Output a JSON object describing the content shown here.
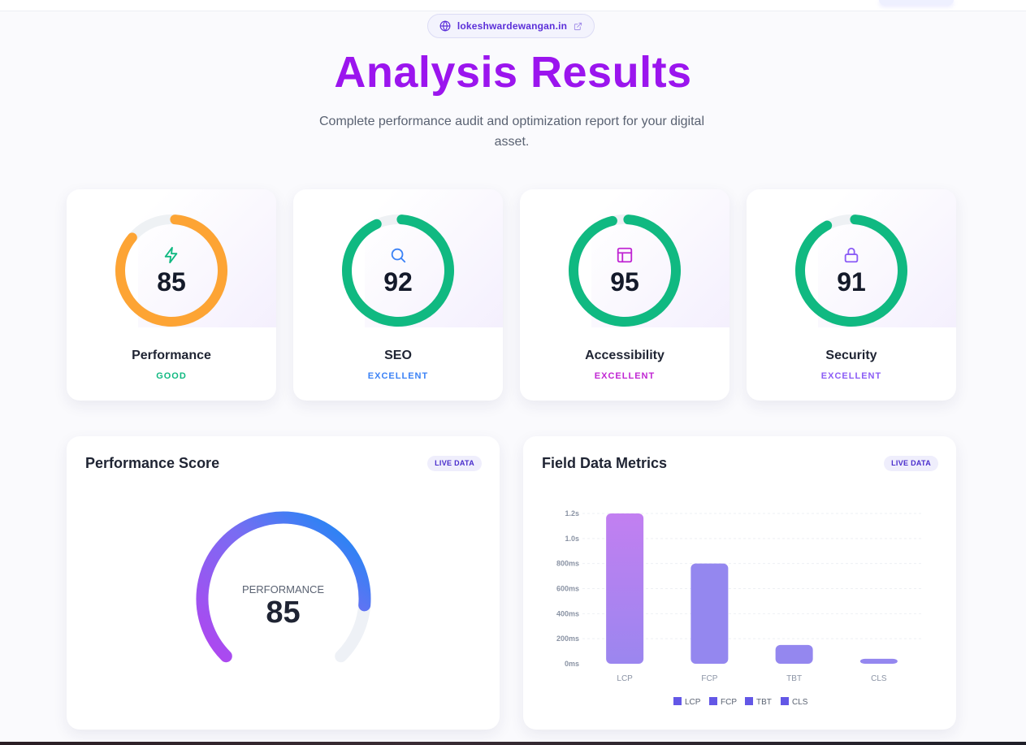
{
  "url": "lokeshwardewangan.in",
  "page_title": "Analysis Results",
  "subtitle": "Complete performance audit and optimization report for your digital asset.",
  "score_cards": [
    {
      "label": "Performance",
      "score": "85",
      "status": "GOOD",
      "icon": "bolt-icon",
      "ring_color": "#fda434",
      "status_color": "#10b981",
      "icon_color": "#10b981",
      "fraction": 0.85
    },
    {
      "label": "SEO",
      "score": "92",
      "status": "EXCELLENT",
      "icon": "search-icon",
      "ring_color": "#10b981",
      "status_color": "#3b82f6",
      "icon_color": "#3b82f6",
      "fraction": 0.92
    },
    {
      "label": "Accessibility",
      "score": "95",
      "status": "EXCELLENT",
      "icon": "layout-icon",
      "ring_color": "#10b981",
      "status_color": "#c026d3",
      "icon_color": "#c026d3",
      "fraction": 0.95
    },
    {
      "label": "Security",
      "score": "91",
      "status": "EXCELLENT",
      "icon": "lock-icon",
      "ring_color": "#10b981",
      "status_color": "#8b5cf6",
      "icon_color": "#8b5cf6",
      "fraction": 0.91
    }
  ],
  "performance_panel": {
    "title": "Performance Score",
    "badge": "LIVE DATA",
    "gauge_label": "PERFORMANCE",
    "gauge_value": "85",
    "fraction": 0.85
  },
  "field_panel": {
    "title": "Field Data Metrics",
    "badge": "LIVE DATA"
  },
  "chart_data": {
    "type": "bar",
    "categories": [
      "LCP",
      "FCP",
      "TBT",
      "CLS"
    ],
    "values": [
      1200,
      800,
      150,
      40
    ],
    "y_unit": "ms",
    "ylim": [
      0,
      1200
    ],
    "y_ticks": [
      {
        "value": 0,
        "label": "0ms"
      },
      {
        "value": 200,
        "label": "200ms"
      },
      {
        "value": 400,
        "label": "400ms"
      },
      {
        "value": 600,
        "label": "600ms"
      },
      {
        "value": 800,
        "label": "800ms"
      },
      {
        "value": 1000,
        "label": "1.0s"
      },
      {
        "value": 1200,
        "label": "1.2s"
      }
    ],
    "legend": [
      "LCP",
      "FCP",
      "TBT",
      "CLS"
    ],
    "legend_placement": "bottom",
    "grid": true,
    "colors": {
      "lcp_top": "#c27ff1",
      "lcp_bottom": "#9b86ef",
      "bar": "#9487ef",
      "legend": "#6357e6"
    }
  }
}
